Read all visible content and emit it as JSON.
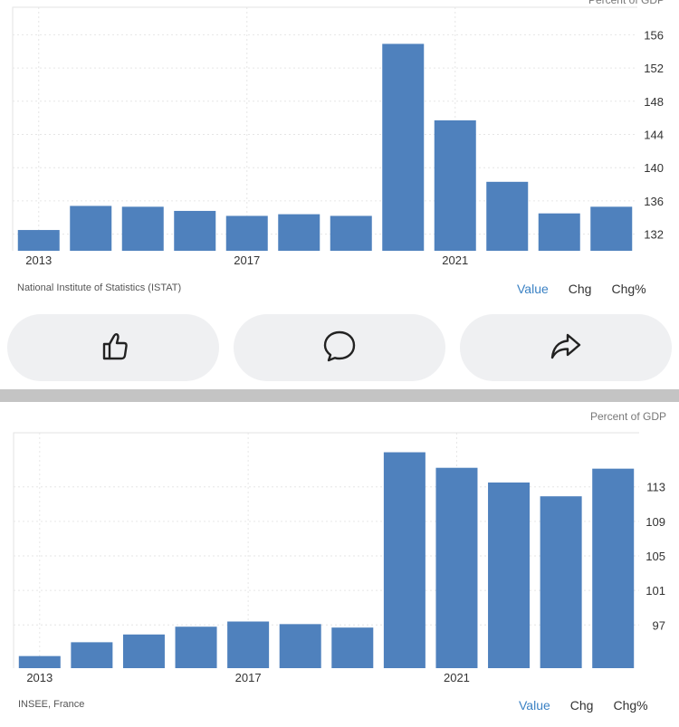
{
  "chart_data": [
    {
      "type": "bar",
      "ylabel": "Percent of GDP",
      "categories": [
        "2013",
        "2014",
        "2015",
        "2016",
        "2017",
        "2018",
        "2019",
        "2020",
        "2021",
        "2022",
        "2023",
        "2024"
      ],
      "values": [
        132.5,
        135.4,
        135.3,
        134.8,
        134.2,
        134.4,
        134.2,
        154.9,
        145.7,
        138.3,
        134.5,
        135.3
      ],
      "ylim": [
        130,
        158
      ],
      "yticks": [
        132,
        136,
        140,
        144,
        148,
        152,
        156
      ],
      "xtick_labels": [
        "2013",
        "2017",
        "2021"
      ],
      "grid": true,
      "color": "#4f81bd"
    },
    {
      "type": "bar",
      "ylabel": "Percent of GDP",
      "categories": [
        "2013",
        "2014",
        "2015",
        "2016",
        "2017",
        "2018",
        "2019",
        "2020",
        "2021",
        "2022",
        "2023",
        "2024"
      ],
      "values": [
        93.4,
        95.0,
        95.9,
        96.8,
        97.4,
        97.1,
        96.7,
        117.0,
        115.2,
        113.5,
        111.9,
        115.1
      ],
      "ylim": [
        92,
        118
      ],
      "yticks": [
        97,
        101,
        105,
        109,
        113
      ],
      "xtick_labels": [
        "2013",
        "2017",
        "2021"
      ],
      "grid": true,
      "color": "#4f81bd"
    }
  ],
  "chart1": {
    "source": "National Institute of Statistics (ISTAT)",
    "tabs": [
      "Value",
      "Chg",
      "Chg%"
    ]
  },
  "chart2": {
    "source": "INSEE, France",
    "tabs": [
      "Value",
      "Chg",
      "Chg%"
    ]
  },
  "actions": {
    "like_icon": "thumbs-up-icon",
    "comment_icon": "comment-bubble-icon",
    "share_icon": "share-arrow-icon"
  },
  "colors": {
    "bar": "#4f81bd",
    "active_tab": "#3b82c4",
    "button_bg": "#eff0f2",
    "separator": "#c4c4c4"
  }
}
